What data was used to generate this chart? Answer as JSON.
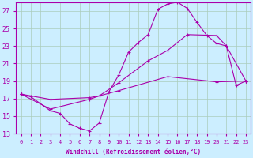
{
  "xlabel": "Windchill (Refroidissement éolien,°C)",
  "bg_color": "#cceeff",
  "grid_color": "#aaccbb",
  "line_color": "#aa00aa",
  "xlim": [
    -0.5,
    23.5
  ],
  "ylim": [
    13,
    28
  ],
  "yticks": [
    13,
    15,
    17,
    19,
    21,
    23,
    25,
    27
  ],
  "xticks": [
    0,
    1,
    2,
    3,
    4,
    5,
    6,
    7,
    8,
    9,
    10,
    11,
    12,
    13,
    14,
    15,
    16,
    17,
    18,
    19,
    20,
    21,
    22,
    23
  ],
  "line1_x": [
    0,
    1,
    3,
    4,
    5,
    6,
    7,
    8,
    9,
    10,
    11,
    12,
    13,
    14,
    15,
    16,
    17,
    18,
    19,
    20,
    21,
    22,
    23
  ],
  "line1_y": [
    17.5,
    17.2,
    15.6,
    15.3,
    14.1,
    13.6,
    13.3,
    14.2,
    17.8,
    19.7,
    22.3,
    23.4,
    24.3,
    27.2,
    27.8,
    28.0,
    27.3,
    25.7,
    24.2,
    23.3,
    23.0,
    18.5,
    19.0
  ],
  "line2_x": [
    0,
    3,
    7,
    8,
    10,
    13,
    15,
    17,
    20,
    21,
    23
  ],
  "line2_y": [
    17.5,
    15.8,
    16.9,
    17.3,
    18.8,
    21.3,
    22.5,
    24.3,
    24.2,
    23.0,
    19.0
  ],
  "line3_x": [
    0,
    3,
    7,
    8,
    10,
    15,
    20,
    23
  ],
  "line3_y": [
    17.5,
    16.9,
    17.1,
    17.3,
    17.9,
    19.5,
    18.9,
    19.0
  ]
}
